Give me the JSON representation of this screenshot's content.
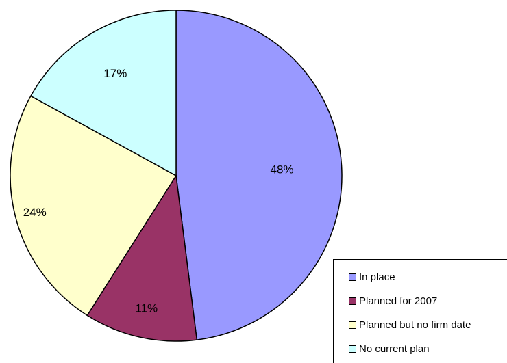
{
  "chart_data": {
    "type": "pie",
    "title": "",
    "legend_position": "bottom-right",
    "slices": [
      {
        "label": "In place",
        "value": 48,
        "value_label": "48%",
        "color": "#9999ff"
      },
      {
        "label": "Planned for 2007",
        "value": 11,
        "value_label": "11%",
        "color": "#993366"
      },
      {
        "label": "Planned but no firm date",
        "value": 24,
        "value_label": "24%",
        "color": "#ffffcc"
      },
      {
        "label": "No current plan",
        "value": 17,
        "value_label": "17%",
        "color": "#ccffff"
      }
    ]
  }
}
